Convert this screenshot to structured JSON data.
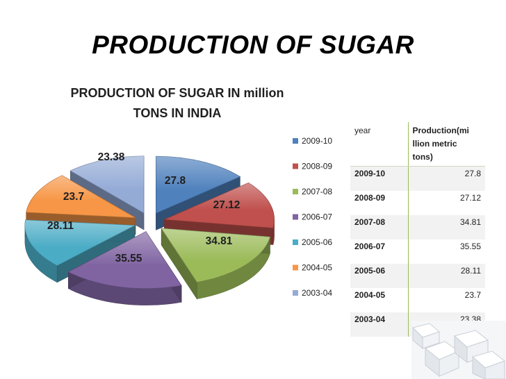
{
  "slide": {
    "title": "PRODUCTION OF SUGAR"
  },
  "chart_data": {
    "type": "pie",
    "title": "PRODUCTION OF SUGAR IN million TONS IN INDIA",
    "title_lines": [
      "PRODUCTION OF SUGAR IN million",
      "TONS IN INDIA"
    ],
    "categories": [
      "2009-10",
      "2008-09",
      "2007-08",
      "2006-07",
      "2005-06",
      "2004-05",
      "2003-04"
    ],
    "values": [
      27.8,
      27.12,
      34.81,
      35.55,
      28.11,
      23.7,
      23.38
    ],
    "labels": [
      "27.8",
      "27.12",
      "34.81",
      "35.55",
      "28.11",
      "23.7",
      "23.38"
    ],
    "colors": [
      "#4f81bd",
      "#c0504d",
      "#9bbb59",
      "#8064a2",
      "#4bacc6",
      "#f79646",
      "#94abd6"
    ],
    "exploded": true,
    "legend_position": "right"
  },
  "table": {
    "headers": [
      "year",
      "Production(mi llion metric tons)"
    ],
    "header_lines": [
      "Production(mi",
      "llion metric",
      "tons)"
    ],
    "rows": [
      [
        "2009-10",
        "27.8"
      ],
      [
        "2008-09",
        "27.12"
      ],
      [
        "2007-08",
        "34.81"
      ],
      [
        "2006-07",
        "35.55"
      ],
      [
        "2005-06",
        "28.11"
      ],
      [
        "2004-05",
        "23.7"
      ],
      [
        "2003-04",
        "23.38"
      ]
    ]
  }
}
